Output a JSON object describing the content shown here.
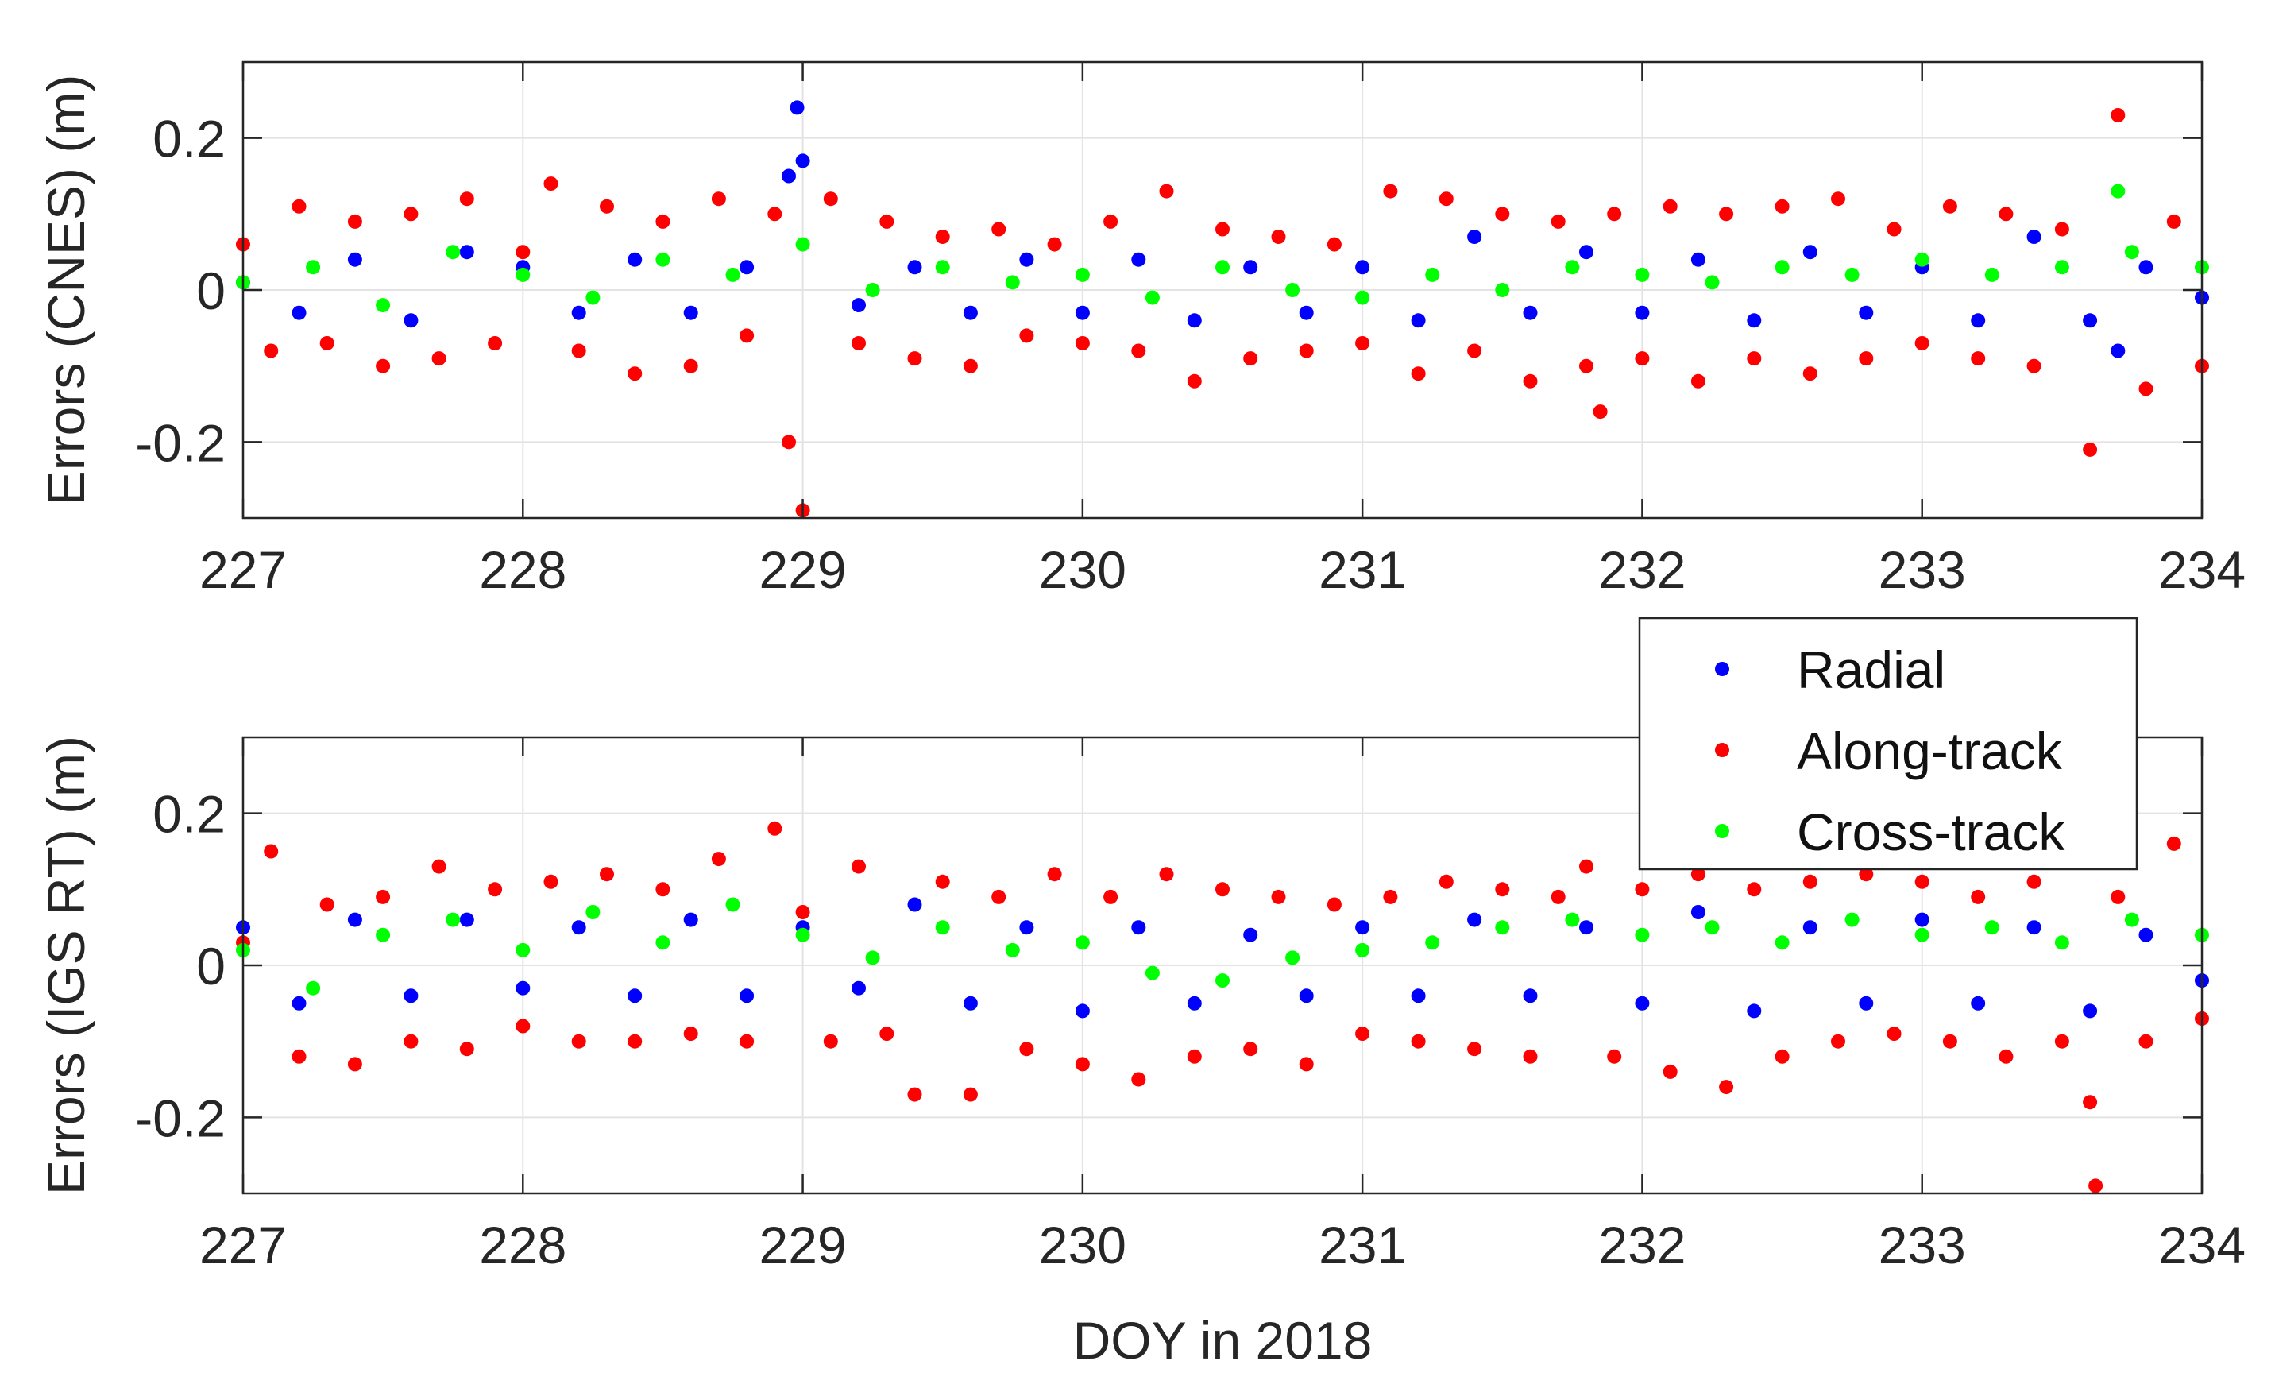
{
  "chart_data": [
    {
      "type": "scatter",
      "xlabel": "",
      "ylabel": "Errors (CNES) (m)",
      "xlim": [
        227,
        234
      ],
      "ylim": [
        -0.3,
        0.3
      ],
      "xticks": [
        "227",
        "228",
        "229",
        "230",
        "231",
        "232",
        "233",
        "234"
      ],
      "yticks": [
        "-0.2",
        "0",
        "0.2"
      ],
      "grid": true,
      "series": [
        {
          "name": "Radial",
          "color": "#0000ff",
          "x": [
            227.0,
            227.2,
            227.4,
            227.6,
            227.8,
            228.0,
            228.2,
            228.4,
            228.6,
            228.8,
            228.95,
            228.98,
            229.0,
            229.2,
            229.4,
            229.6,
            229.8,
            230.0,
            230.2,
            230.4,
            230.6,
            230.8,
            231.0,
            231.2,
            231.4,
            231.6,
            231.8,
            232.0,
            232.2,
            232.4,
            232.6,
            232.8,
            233.0,
            233.2,
            233.4,
            233.6,
            233.7,
            233.8,
            234.0
          ],
          "values": [
            0.01,
            -0.03,
            0.04,
            -0.04,
            0.05,
            0.03,
            -0.03,
            0.04,
            -0.03,
            0.03,
            0.15,
            0.24,
            0.17,
            -0.02,
            0.03,
            -0.03,
            0.04,
            -0.03,
            0.04,
            -0.04,
            0.03,
            -0.03,
            0.03,
            -0.04,
            0.07,
            -0.03,
            0.05,
            -0.03,
            0.04,
            -0.04,
            0.05,
            -0.03,
            0.03,
            -0.04,
            0.07,
            -0.04,
            -0.08,
            0.03,
            -0.01
          ]
        },
        {
          "name": "Along-track",
          "color": "#ff0000",
          "x": [
            227.0,
            227.1,
            227.2,
            227.3,
            227.4,
            227.5,
            227.6,
            227.7,
            227.8,
            227.9,
            228.0,
            228.1,
            228.2,
            228.3,
            228.4,
            228.5,
            228.6,
            228.7,
            228.8,
            228.9,
            228.95,
            229.0,
            229.1,
            229.2,
            229.3,
            229.4,
            229.5,
            229.6,
            229.7,
            229.8,
            229.9,
            230.0,
            230.1,
            230.2,
            230.3,
            230.4,
            230.5,
            230.6,
            230.7,
            230.8,
            230.9,
            231.0,
            231.1,
            231.2,
            231.3,
            231.4,
            231.5,
            231.6,
            231.7,
            231.8,
            231.85,
            231.9,
            232.0,
            232.1,
            232.2,
            232.3,
            232.4,
            232.5,
            232.6,
            232.7,
            232.8,
            232.9,
            233.0,
            233.1,
            233.2,
            233.3,
            233.4,
            233.5,
            233.6,
            233.7,
            233.8,
            233.9,
            234.0
          ],
          "values": [
            0.06,
            -0.08,
            0.11,
            -0.07,
            0.09,
            -0.1,
            0.1,
            -0.09,
            0.12,
            -0.07,
            0.05,
            0.14,
            -0.08,
            0.11,
            -0.11,
            0.09,
            -0.1,
            0.12,
            -0.06,
            0.1,
            -0.2,
            -0.29,
            0.12,
            -0.07,
            0.09,
            -0.09,
            0.07,
            -0.1,
            0.08,
            -0.06,
            0.06,
            -0.07,
            0.09,
            -0.08,
            0.13,
            -0.12,
            0.08,
            -0.09,
            0.07,
            -0.08,
            0.06,
            -0.07,
            0.13,
            -0.11,
            0.12,
            -0.08,
            0.1,
            -0.12,
            0.09,
            -0.1,
            -0.16,
            0.1,
            -0.09,
            0.11,
            -0.12,
            0.1,
            -0.09,
            0.11,
            -0.11,
            0.12,
            -0.09,
            0.08,
            -0.07,
            0.11,
            -0.09,
            0.1,
            -0.1,
            0.08,
            -0.21,
            0.23,
            -0.13,
            0.09,
            -0.1
          ]
        },
        {
          "name": "Cross-track",
          "color": "#00ff00",
          "x": [
            227.0,
            227.25,
            227.5,
            227.75,
            228.0,
            228.25,
            228.5,
            228.75,
            229.0,
            229.25,
            229.5,
            229.75,
            230.0,
            230.25,
            230.5,
            230.75,
            231.0,
            231.25,
            231.5,
            231.75,
            232.0,
            232.25,
            232.5,
            232.75,
            233.0,
            233.25,
            233.5,
            233.7,
            233.75,
            234.0
          ],
          "values": [
            0.01,
            0.03,
            -0.02,
            0.05,
            0.02,
            -0.01,
            0.04,
            0.02,
            0.06,
            0.0,
            0.03,
            0.01,
            0.02,
            -0.01,
            0.03,
            0.0,
            -0.01,
            0.02,
            0.0,
            0.03,
            0.02,
            0.01,
            0.03,
            0.02,
            0.04,
            0.02,
            0.03,
            0.13,
            0.05,
            0.03
          ]
        }
      ]
    },
    {
      "type": "scatter",
      "xlabel": "DOY in 2018",
      "ylabel": "Errors (IGS RT) (m)",
      "xlim": [
        227,
        234
      ],
      "ylim": [
        -0.3,
        0.3
      ],
      "xticks": [
        "227",
        "228",
        "229",
        "230",
        "231",
        "232",
        "233",
        "234"
      ],
      "yticks": [
        "-0.2",
        "0",
        "0.2"
      ],
      "grid": true,
      "legend": {
        "entries": [
          "Radial",
          "Along-track",
          "Cross-track"
        ],
        "position": "top-right"
      },
      "series": [
        {
          "name": "Radial",
          "color": "#0000ff",
          "x": [
            227.0,
            227.2,
            227.4,
            227.6,
            227.8,
            228.0,
            228.2,
            228.4,
            228.6,
            228.8,
            229.0,
            229.2,
            229.4,
            229.6,
            229.8,
            230.0,
            230.2,
            230.4,
            230.6,
            230.8,
            231.0,
            231.2,
            231.4,
            231.6,
            231.8,
            232.0,
            232.2,
            232.4,
            232.6,
            232.8,
            233.0,
            233.2,
            233.4,
            233.6,
            233.8,
            234.0
          ],
          "values": [
            0.05,
            -0.05,
            0.06,
            -0.04,
            0.06,
            -0.03,
            0.05,
            -0.04,
            0.06,
            -0.04,
            0.05,
            -0.03,
            0.08,
            -0.05,
            0.05,
            -0.06,
            0.05,
            -0.05,
            0.04,
            -0.04,
            0.05,
            -0.04,
            0.06,
            -0.04,
            0.05,
            -0.05,
            0.07,
            -0.06,
            0.05,
            -0.05,
            0.06,
            -0.05,
            0.05,
            -0.06,
            0.04,
            -0.02
          ]
        },
        {
          "name": "Along-track",
          "color": "#ff0000",
          "x": [
            227.0,
            227.1,
            227.2,
            227.3,
            227.4,
            227.5,
            227.6,
            227.7,
            227.8,
            227.9,
            228.0,
            228.1,
            228.2,
            228.3,
            228.4,
            228.5,
            228.6,
            228.7,
            228.8,
            228.9,
            229.0,
            229.1,
            229.2,
            229.3,
            229.4,
            229.5,
            229.6,
            229.7,
            229.8,
            229.9,
            230.0,
            230.1,
            230.2,
            230.3,
            230.4,
            230.5,
            230.6,
            230.7,
            230.8,
            230.9,
            231.0,
            231.1,
            231.2,
            231.3,
            231.4,
            231.5,
            231.6,
            231.7,
            231.8,
            231.9,
            232.0,
            232.1,
            232.2,
            232.3,
            232.4,
            232.5,
            232.6,
            232.7,
            232.8,
            232.9,
            233.0,
            233.1,
            233.2,
            233.3,
            233.4,
            233.5,
            233.6,
            233.62,
            233.7,
            233.8,
            233.9,
            234.0
          ],
          "values": [
            0.03,
            0.15,
            -0.12,
            0.08,
            -0.13,
            0.09,
            -0.1,
            0.13,
            -0.11,
            0.1,
            -0.08,
            0.11,
            -0.1,
            0.12,
            -0.1,
            0.1,
            -0.09,
            0.14,
            -0.1,
            0.18,
            0.07,
            -0.1,
            0.13,
            -0.09,
            -0.17,
            0.11,
            -0.17,
            0.09,
            -0.11,
            0.12,
            -0.13,
            0.09,
            -0.15,
            0.12,
            -0.12,
            0.1,
            -0.11,
            0.09,
            -0.13,
            0.08,
            -0.09,
            0.09,
            -0.1,
            0.11,
            -0.11,
            0.1,
            -0.12,
            0.09,
            0.13,
            -0.12,
            0.1,
            -0.14,
            0.12,
            -0.16,
            0.1,
            -0.12,
            0.11,
            -0.1,
            0.12,
            -0.09,
            0.11,
            -0.1,
            0.09,
            -0.12,
            0.11,
            -0.1,
            -0.18,
            -0.29,
            0.09,
            -0.1,
            0.16,
            -0.07
          ]
        },
        {
          "name": "Cross-track",
          "color": "#00ff00",
          "x": [
            227.0,
            227.25,
            227.5,
            227.75,
            228.0,
            228.25,
            228.5,
            228.75,
            229.0,
            229.25,
            229.5,
            229.75,
            230.0,
            230.25,
            230.5,
            230.75,
            231.0,
            231.25,
            231.5,
            231.75,
            232.0,
            232.25,
            232.5,
            232.75,
            233.0,
            233.25,
            233.5,
            233.75,
            234.0
          ],
          "values": [
            0.02,
            -0.03,
            0.04,
            0.06,
            0.02,
            0.07,
            0.03,
            0.08,
            0.04,
            0.01,
            0.05,
            0.02,
            0.03,
            -0.01,
            -0.02,
            0.01,
            0.02,
            0.03,
            0.05,
            0.06,
            0.04,
            0.05,
            0.03,
            0.06,
            0.04,
            0.05,
            0.03,
            0.06,
            0.04
          ]
        }
      ]
    }
  ]
}
